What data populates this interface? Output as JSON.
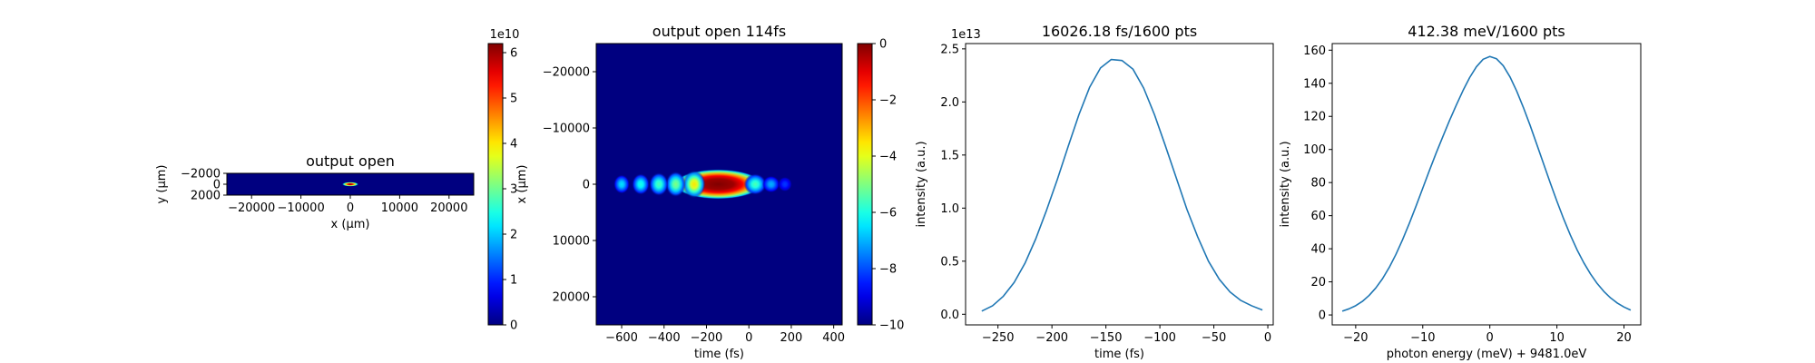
{
  "chart_data": [
    {
      "type": "heatmap",
      "title": "output open",
      "xlabel": "x (μm)",
      "ylabel": "y (μm)",
      "xlim": [
        -25000,
        25000
      ],
      "ylim": [
        -2000,
        2000
      ],
      "x_ticks": [
        -20000,
        -10000,
        0,
        10000,
        20000
      ],
      "y_ticks": [
        -2000,
        0,
        2000
      ],
      "y_inverted": true,
      "colormap": "jet",
      "colorbar": {
        "range": [
          0,
          6.2
        ],
        "ticks": [
          0,
          1,
          2,
          3,
          4,
          5,
          6
        ],
        "multiplier": "1e10"
      },
      "spots": [
        {
          "x": 0,
          "y": 0,
          "sx": 900,
          "sy": 220,
          "amp": 1.0
        }
      ]
    },
    {
      "type": "heatmap",
      "title": "output open 114fs",
      "xlabel": "time (fs)",
      "ylabel": "x (μm)",
      "xlim": [
        -720,
        440
      ],
      "ylim": [
        -25000,
        25000
      ],
      "x_ticks": [
        -600,
        -400,
        -200,
        0,
        200,
        400
      ],
      "y_ticks": [
        -20000,
        -10000,
        0,
        10000,
        20000
      ],
      "y_inverted": true,
      "colormap": "jet",
      "colorbar": {
        "range": [
          -10,
          0
        ],
        "ticks": [
          0,
          -2,
          -4,
          -6,
          -8,
          -10
        ],
        "multiplier": ""
      },
      "spots": [
        {
          "x": -145,
          "y": 0,
          "sx": 110,
          "sy": 1400,
          "amp": 1.0,
          "flat": true
        },
        {
          "x": -258,
          "y": 0,
          "sx": 28,
          "sy": 1300,
          "amp": 0.65
        },
        {
          "x": -345,
          "y": 0,
          "sx": 25,
          "sy": 1200,
          "amp": 0.5
        },
        {
          "x": -425,
          "y": 0,
          "sx": 24,
          "sy": 1100,
          "amp": 0.45
        },
        {
          "x": -510,
          "y": 0,
          "sx": 22,
          "sy": 1000,
          "amp": 0.4
        },
        {
          "x": -600,
          "y": 0,
          "sx": 20,
          "sy": 900,
          "amp": 0.35
        },
        {
          "x": 30,
          "y": 0,
          "sx": 28,
          "sy": 1000,
          "amp": 0.45
        },
        {
          "x": 105,
          "y": 0,
          "sx": 22,
          "sy": 800,
          "amp": 0.3
        },
        {
          "x": 170,
          "y": 0,
          "sx": 18,
          "sy": 700,
          "amp": 0.18
        }
      ]
    },
    {
      "type": "line",
      "title": "16026.18 fs/1600 pts",
      "xlabel": "time (fs)",
      "ylabel": "intensity (a.u.)",
      "multiplier": "1e13",
      "xlim": [
        -280,
        5
      ],
      "ylim": [
        -0.1,
        2.55
      ],
      "x_ticks": [
        -250,
        -200,
        -150,
        -100,
        -50,
        0
      ],
      "y_ticks": [
        0.0,
        0.5,
        1.0,
        1.5,
        2.0,
        2.5
      ],
      "series": [
        {
          "color": "#1f77b4",
          "x": [
            -265,
            -255,
            -245,
            -235,
            -225,
            -215,
            -205,
            -195,
            -185,
            -175,
            -165,
            -155,
            -145,
            -135,
            -125,
            -115,
            -105,
            -95,
            -85,
            -75,
            -65,
            -55,
            -45,
            -35,
            -25,
            -15,
            -5
          ],
          "y": [
            0.03,
            0.08,
            0.17,
            0.3,
            0.48,
            0.71,
            0.98,
            1.27,
            1.58,
            1.88,
            2.14,
            2.32,
            2.4,
            2.39,
            2.31,
            2.13,
            1.88,
            1.59,
            1.29,
            0.99,
            0.73,
            0.5,
            0.33,
            0.21,
            0.13,
            0.08,
            0.04
          ]
        }
      ]
    },
    {
      "type": "line",
      "title": "412.38 meV/1600 pts",
      "xlabel": "photon energy (meV) + 9481.0eV",
      "ylabel": "intensity (a.u.)",
      "xlim": [
        -23.5,
        22.5
      ],
      "ylim": [
        -6,
        164
      ],
      "x_ticks": [
        -20,
        -10,
        0,
        10,
        20
      ],
      "y_ticks": [
        0,
        20,
        40,
        60,
        80,
        100,
        120,
        140,
        160
      ],
      "series": [
        {
          "color": "#1f77b4",
          "x": [
            -22,
            -21,
            -20,
            -19,
            -18,
            -17,
            -16,
            -15,
            -14,
            -13,
            -12,
            -11,
            -10,
            -9,
            -8,
            -7,
            -6,
            -5,
            -4,
            -3,
            -2,
            -1,
            0,
            1,
            2,
            3,
            4,
            5,
            6,
            7,
            8,
            9,
            10,
            11,
            12,
            13,
            14,
            15,
            16,
            17,
            18,
            19,
            20,
            21
          ],
          "y": [
            2.3,
            3.7,
            5.6,
            8.2,
            11.8,
            16.3,
            21.9,
            28.7,
            36.6,
            45.6,
            55.4,
            65.8,
            76.6,
            87.4,
            97.9,
            107.8,
            117.6,
            126.8,
            135.6,
            143.5,
            150.0,
            154.5,
            156.2,
            154.8,
            150.6,
            143.9,
            135.3,
            125.4,
            114.6,
            103.1,
            91.5,
            79.9,
            68.7,
            58.1,
            48.3,
            39.4,
            31.6,
            24.8,
            19.0,
            14.2,
            10.3,
            7.2,
            4.8,
            2.9
          ]
        }
      ]
    }
  ]
}
